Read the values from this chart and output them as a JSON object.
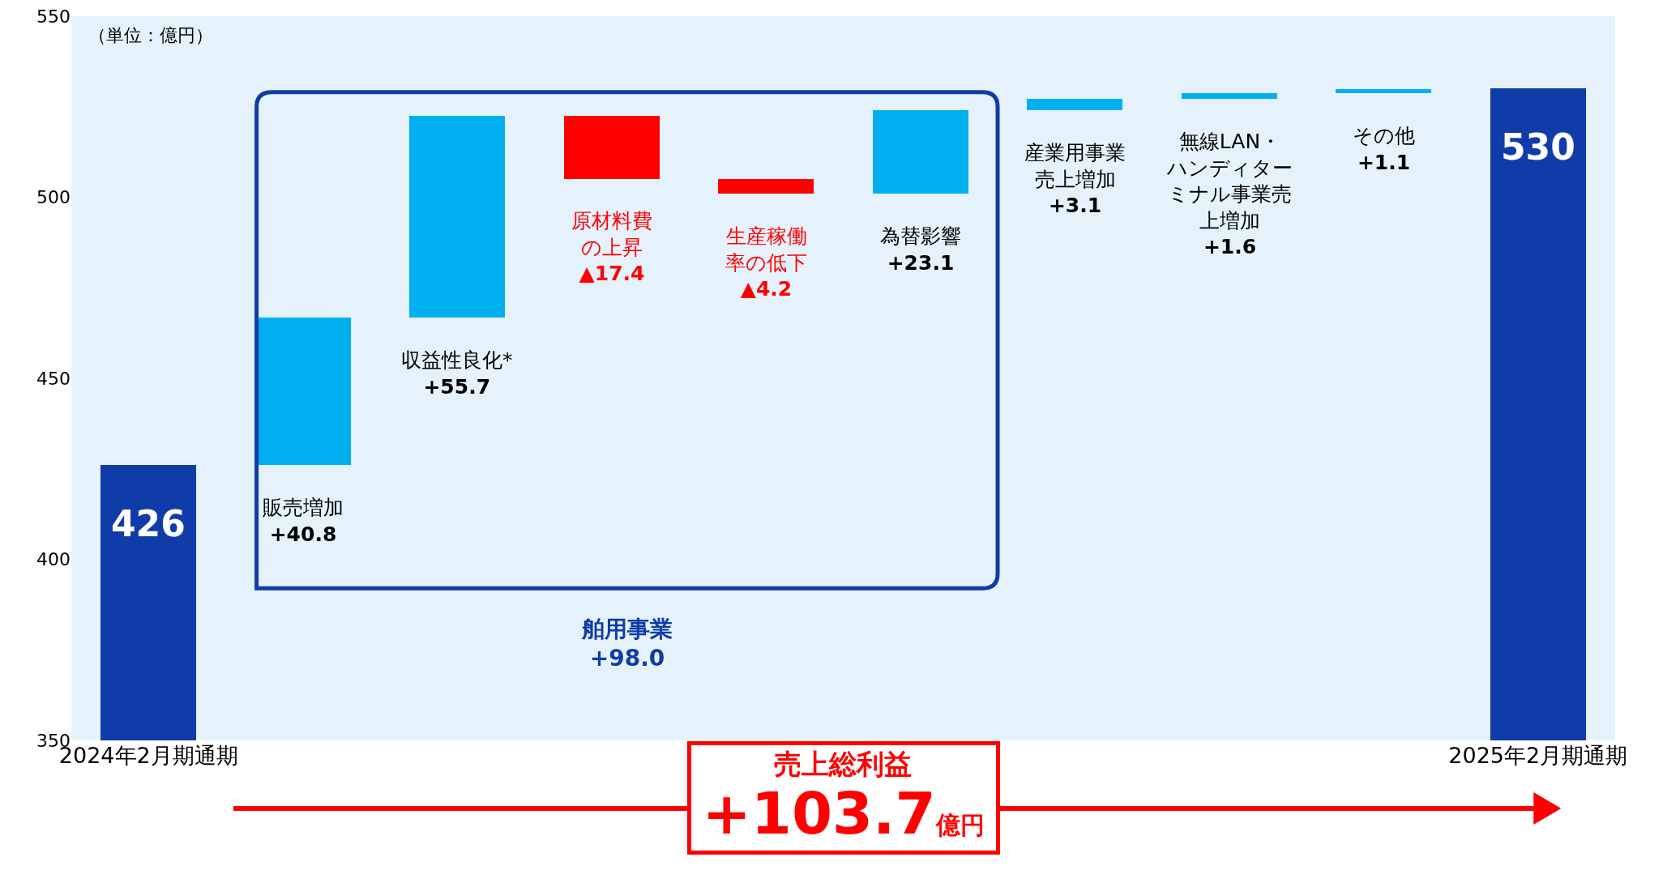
{
  "chart_data": {
    "type": "bar",
    "categories": [
      "2024年2月期通期",
      null,
      null,
      null,
      null,
      null,
      null,
      null,
      null,
      "2025年2月期通期"
    ],
    "values": [
      426,
      40.8,
      55.7,
      -17.4,
      -4.2,
      23.1,
      3.1,
      1.6,
      1.1,
      530
    ],
    "base": [
      null,
      426,
      466.8,
      522.5,
      505.1,
      500.9,
      524.0,
      527.1,
      528.7,
      null
    ],
    "colors": [
      "#0f3ca8",
      "#00b0f0",
      "#00b0f0",
      "#ff0000",
      "#ff0000",
      "#00b0f0",
      "#00b0f0",
      "#00b0f0",
      "#00b0f0",
      "#0f3ca8"
    ],
    "value_labels": [
      "426",
      "販売増加+40.8",
      "収益性良化*+55.7",
      "原材料費の上昇▲17.4",
      "生産稼働率の低下▲4.2",
      "為替影響+23.1",
      "産業用事業売上増加+3.1",
      "無線LAN・ハンディターミナル事業売上増加+1.6",
      "その他+1.1",
      "530"
    ],
    "ylim": [
      350,
      550
    ],
    "yticks": [
      350,
      400,
      450,
      500,
      550
    ],
    "annotations": [
      "（単位：億円）",
      "舶用事業\n+98.0",
      "売上総利益\n+103.7億円"
    ]
  }
}
